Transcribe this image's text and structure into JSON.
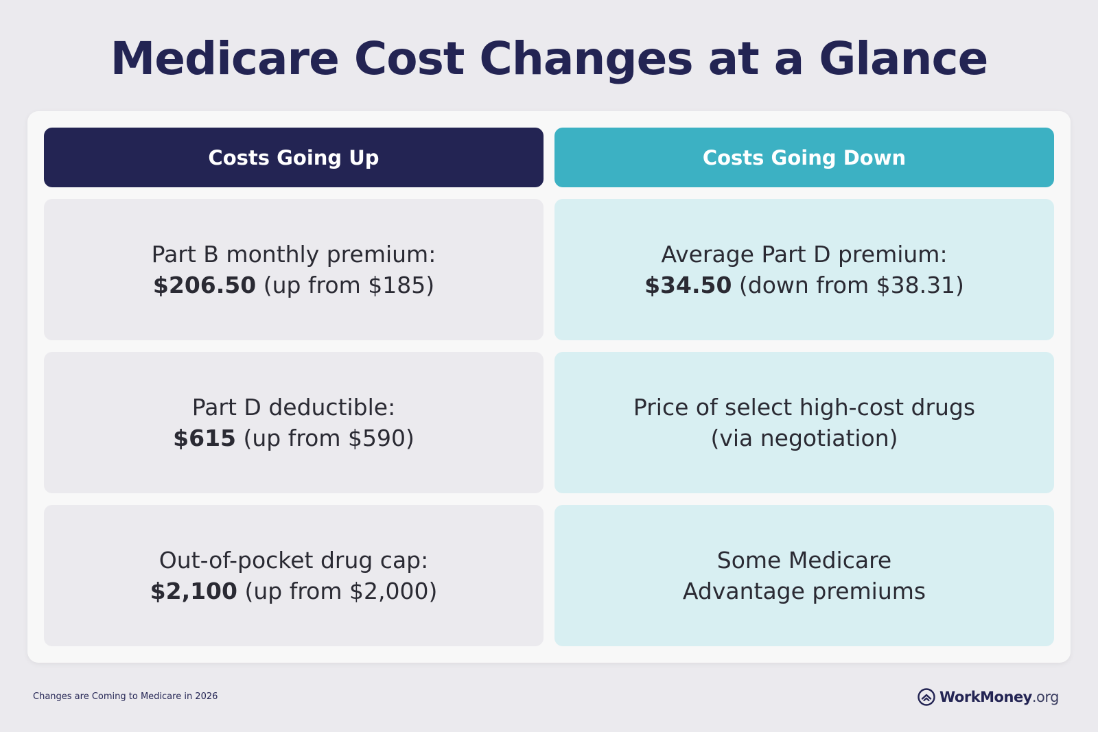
{
  "title": "Medicare Cost Changes at a Glance",
  "colors": {
    "navy": "#232453",
    "teal": "#3cb1c3",
    "up_cell": "#ebeaee",
    "down_cell": "#d8eff2"
  },
  "columns": {
    "up": {
      "header": "Costs Going Up",
      "items": [
        {
          "label": "Part B monthly premium:",
          "value": "$206.50",
          "note": " (up from $185)"
        },
        {
          "label": "Part D deductible:",
          "value": "$615",
          "note": " (up from $590)"
        },
        {
          "label": "Out-of-pocket drug cap:",
          "value": "$2,100",
          "note": " (up from $2,000)"
        }
      ]
    },
    "down": {
      "header": "Costs Going Down",
      "items": [
        {
          "label": "Average Part D premium:",
          "value": "$34.50",
          "note": " (down from $38.31)"
        },
        {
          "line1": "Price of select high-cost drugs",
          "line2": "(via negotiation)"
        },
        {
          "line1": "Some Medicare",
          "line2": "Advantage premiums"
        }
      ]
    }
  },
  "footer": {
    "note": "Changes are Coming to Medicare in 2026",
    "brand_name": "WorkMoney",
    "brand_tld": ".org",
    "brand_icon": "workmoney-logo-icon"
  }
}
